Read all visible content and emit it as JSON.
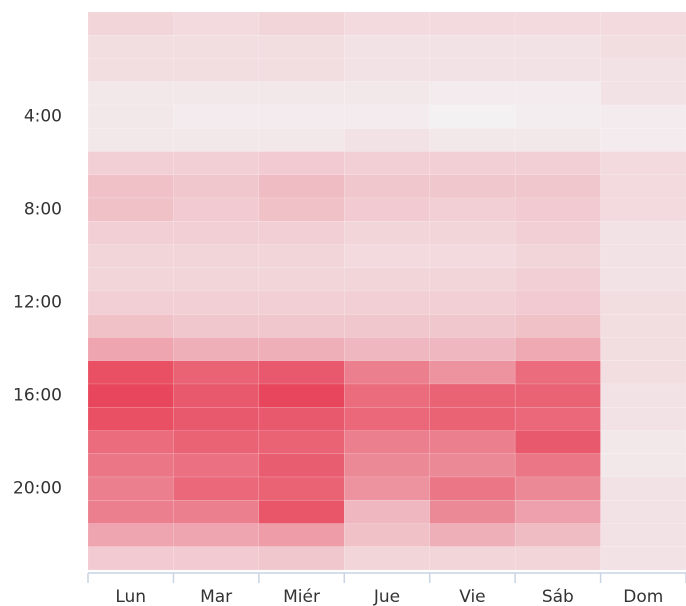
{
  "chart_data": {
    "type": "heatmap",
    "categories": [
      "Lun",
      "Mar",
      "Miér",
      "Jue",
      "Vie",
      "Sáb",
      "Dom"
    ],
    "ylim": [
      0,
      24
    ],
    "yticks": [
      {
        "value": 4,
        "label": "4:00"
      },
      {
        "value": 8,
        "label": "8:00"
      },
      {
        "value": 12,
        "label": "12:00"
      },
      {
        "value": 16,
        "label": "16:00"
      },
      {
        "value": 20,
        "label": "20:00"
      }
    ],
    "colors": [
      "#f3f1f2",
      "#e8465c"
    ],
    "values": [
      [
        15,
        10,
        10,
        5,
        5,
        5,
        18,
        25,
        25,
        18,
        15,
        15,
        18,
        25,
        40,
        85,
        90,
        85,
        70,
        65,
        60,
        60,
        40,
        20
      ],
      [
        12,
        10,
        10,
        5,
        3,
        5,
        18,
        22,
        20,
        18,
        15,
        15,
        18,
        22,
        35,
        75,
        80,
        80,
        75,
        68,
        72,
        60,
        40,
        20
      ],
      [
        15,
        10,
        10,
        5,
        3,
        5,
        20,
        28,
        25,
        18,
        15,
        15,
        18,
        22,
        35,
        80,
        90,
        80,
        75,
        78,
        75,
        82,
        45,
        22
      ],
      [
        12,
        8,
        8,
        5,
        3,
        8,
        18,
        22,
        20,
        15,
        12,
        15,
        18,
        22,
        30,
        60,
        70,
        72,
        60,
        55,
        50,
        30,
        25,
        15
      ],
      [
        12,
        8,
        8,
        3,
        0,
        5,
        18,
        22,
        18,
        15,
        12,
        15,
        18,
        22,
        30,
        50,
        75,
        75,
        60,
        55,
        65,
        55,
        35,
        15
      ],
      [
        12,
        8,
        8,
        3,
        2,
        5,
        18,
        22,
        20,
        18,
        15,
        18,
        20,
        25,
        38,
        70,
        75,
        72,
        80,
        65,
        55,
        42,
        28,
        15
      ],
      [
        12,
        10,
        8,
        8,
        3,
        3,
        12,
        12,
        12,
        8,
        8,
        8,
        10,
        10,
        10,
        10,
        8,
        8,
        5,
        5,
        8,
        8,
        8,
        8
      ]
    ]
  }
}
